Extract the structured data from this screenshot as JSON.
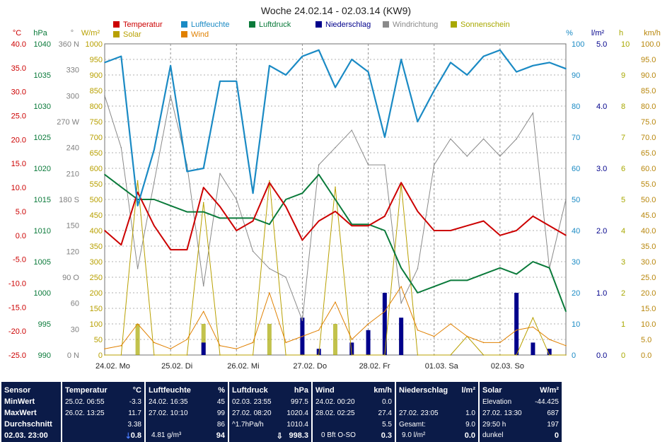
{
  "title": "Woche 24.02.14 - 02.03.14 (KW9)",
  "legend": [
    {
      "label": "Temperatur",
      "color": "#cc0000"
    },
    {
      "label": "Luftfeuchte",
      "color": "#1a8ac4"
    },
    {
      "label": "Luftdruck",
      "color": "#0a7a3a"
    },
    {
      "label": "Niederschlag",
      "color": "#00008b"
    },
    {
      "label": "Windrichtung",
      "color": "#8a8a8a"
    },
    {
      "label": "Sonnenschein",
      "color": "#a8a800"
    },
    {
      "label": "Solar",
      "color": "#b8a000"
    },
    {
      "label": "Wind",
      "color": "#e08000"
    }
  ],
  "axes": {
    "temp": {
      "unit": "°C",
      "color": "#cc0000",
      "ticks": [
        "40.0",
        "35.0",
        "30.0",
        "25.0",
        "20.0",
        "15.0",
        "10.0",
        "5.0",
        "0.0",
        "-5.0",
        "-10.0",
        "-15.0",
        "-20.0",
        "-25.0"
      ]
    },
    "hpa": {
      "unit": "hPa",
      "color": "#0a7a3a",
      "ticks": [
        "1040",
        "1035",
        "1030",
        "1025",
        "1020",
        "1015",
        "1010",
        "1005",
        "1000",
        "995",
        "990"
      ]
    },
    "dir": {
      "unit": "°",
      "color": "#808080",
      "ticks": [
        "360 N",
        "330",
        "300",
        "270 W",
        "240",
        "210",
        "180 S",
        "150",
        "120",
        "90 O",
        "60",
        "30",
        "0 N"
      ]
    },
    "solar": {
      "unit": "W/m²",
      "color": "#b8a000",
      "ticks": [
        "1000",
        "950",
        "900",
        "850",
        "800",
        "750",
        "700",
        "650",
        "600",
        "550",
        "500",
        "450",
        "400",
        "350",
        "300",
        "250",
        "200",
        "150",
        "100",
        "50",
        "0"
      ]
    },
    "hum": {
      "unit": "%",
      "color": "#1a8ac4",
      "ticks": [
        "100",
        "90",
        "80",
        "70",
        "60",
        "50",
        "40",
        "30",
        "20",
        "10",
        "0"
      ]
    },
    "rain": {
      "unit": "l/m²",
      "color": "#00008b",
      "ticks": [
        "5.0",
        "4.0",
        "3.0",
        "2.0",
        "1.0",
        "0.0"
      ]
    },
    "sun": {
      "unit": "h",
      "color": "#a8a800",
      "ticks": [
        "10",
        "9",
        "8",
        "7",
        "6",
        "5",
        "4",
        "3",
        "2",
        "1",
        "0"
      ]
    },
    "wind": {
      "unit": "km/h",
      "color": "#b8860b",
      "ticks": [
        "100.0",
        "95.0",
        "90.0",
        "85.0",
        "80.0",
        "75.0",
        "70.0",
        "65.0",
        "60.0",
        "55.0",
        "50.0",
        "45.0",
        "40.0",
        "35.0",
        "30.0",
        "25.0",
        "20.0",
        "15.0",
        "10.0",
        "5.0",
        "0.0"
      ]
    }
  },
  "days": [
    "24.02. Mo",
    "25.02. Di",
    "26.02. Mi",
    "27.02. Do",
    "28.02. Fr",
    "01.03. Sa",
    "02.03. So"
  ],
  "chart_data": {
    "type": "line",
    "title": "Woche 24.02.14 - 02.03.14 (KW9)",
    "x_hours_from_start": [
      0,
      6,
      12,
      18,
      24,
      30,
      36,
      42,
      48,
      54,
      60,
      66,
      72,
      78,
      84,
      90,
      96,
      102,
      108,
      114,
      120,
      126,
      132,
      138,
      144,
      150,
      156,
      162,
      168
    ],
    "series": [
      {
        "name": "Temperatur",
        "unit": "°C",
        "values": [
          1,
          -2,
          9,
          2,
          -3,
          -3,
          10,
          6,
          1,
          3,
          11,
          6,
          -1,
          3,
          5,
          2,
          2,
          4,
          11,
          5,
          1,
          1,
          2,
          3,
          0,
          1,
          4,
          2,
          0
        ]
      },
      {
        "name": "Luftfeuchte",
        "unit": "%",
        "values": [
          94,
          96,
          48,
          66,
          93,
          59,
          60,
          88,
          88,
          52,
          93,
          90,
          96,
          98,
          86,
          95,
          91,
          70,
          95,
          75,
          85,
          94,
          90,
          96,
          98,
          91,
          93,
          94,
          92
        ]
      },
      {
        "name": "Luftdruck",
        "unit": "hPa",
        "values": [
          1019,
          1017,
          1015,
          1015,
          1014,
          1013,
          1013,
          1012,
          1012,
          1012,
          1011,
          1015,
          1016,
          1019,
          1015,
          1011,
          1011,
          1010,
          1004,
          1000,
          1001,
          1002,
          1002,
          1003,
          1004,
          1003,
          1005,
          1004,
          997
        ]
      },
      {
        "name": "Windrichtung",
        "unit": "°",
        "values": [
          300,
          240,
          100,
          200,
          300,
          220,
          80,
          210,
          180,
          120,
          100,
          90,
          40,
          220,
          240,
          260,
          220,
          220,
          60,
          100,
          220,
          250,
          230,
          250,
          230,
          250,
          280,
          100,
          180
        ]
      },
      {
        "name": "Solar",
        "unit": "W/m²",
        "values": [
          0,
          0,
          560,
          0,
          0,
          0,
          490,
          0,
          0,
          0,
          560,
          0,
          0,
          0,
          540,
          0,
          0,
          0,
          550,
          0,
          0,
          0,
          60,
          0,
          0,
          0,
          120,
          0,
          0
        ]
      },
      {
        "name": "Wind",
        "unit": "km/h",
        "values": [
          2,
          3,
          10,
          4,
          2,
          5,
          14,
          3,
          2,
          4,
          20,
          4,
          6,
          8,
          17,
          5,
          10,
          14,
          22,
          8,
          6,
          10,
          6,
          4,
          4,
          8,
          9,
          5,
          3
        ]
      },
      {
        "name": "Niederschlag",
        "unit": "l/m²",
        "values": [
          0,
          0,
          0,
          0,
          0,
          0,
          0.2,
          0,
          0,
          0,
          0,
          0,
          0.6,
          0.1,
          0,
          0.2,
          0.4,
          1.0,
          0.6,
          0,
          0,
          0,
          0,
          0,
          0,
          1.0,
          0.2,
          0.1,
          0
        ]
      },
      {
        "name": "Sonnenschein",
        "unit": "h",
        "values": [
          0,
          0,
          1,
          0,
          0,
          0,
          1,
          0,
          0,
          0,
          1,
          0,
          0,
          0,
          1,
          0,
          0,
          0,
          1,
          0,
          0,
          0,
          0,
          0,
          0,
          0,
          0,
          0,
          0
        ]
      }
    ]
  },
  "stats": {
    "sensor": {
      "header": "Sensor",
      "rows": [
        "MinWert",
        "MaxWert",
        "Durchschnitt"
      ],
      "footer": "02.03. 23:00"
    },
    "temperatur": {
      "header": "Temperatur",
      "unit": "°C",
      "min_time": "25.02.  06:55",
      "min_val": "-3.3",
      "max_time": "26.02.  13:25",
      "max_val": "11.7",
      "avg_val": "3.38",
      "footer_val": "0.8"
    },
    "luftfeuchte": {
      "header": "Luftfeuchte",
      "unit": "%",
      "min_time": "24.02.  16:35",
      "min_val": "45",
      "max_time": "27.02.  10:10",
      "max_val": "99",
      "avg_val": "86",
      "footer_text": "4.81 g/m³",
      "footer_val": "94"
    },
    "luftdruck": {
      "header": "Luftdruck",
      "unit": "hPa",
      "min_time": "02.03.  23:55",
      "min_val": "997.5",
      "max_time": "27.02.  08:20",
      "max_val": "1020.4",
      "avg_text": "^1.7hPa/h",
      "avg_val": "1010.4",
      "footer_val": "998.3"
    },
    "wind": {
      "header": "Wind",
      "unit": "km/h",
      "min_time": "24.02.  00:20",
      "min_val": "0.0",
      "max_time": "28.02.  02:25",
      "max_val": "27.4",
      "avg_val": "5.5",
      "footer_text": "0 Bft O-SO",
      "footer_val": "0.3"
    },
    "niederschlag": {
      "header": "Niederschlag",
      "unit": "l/m²",
      "max_time": "27.02.  23:05",
      "max_val": "1.0",
      "total_label": "Gesamt:",
      "total_val": "9.0",
      "footer_text": "9.0 l/m²",
      "footer_val": "0.0"
    },
    "solar": {
      "header": "Solar",
      "unit": "W/m²",
      "min_label": "Elevation",
      "min_val": "-44.425",
      "max_time": "27.02.  13:30",
      "max_val": "687",
      "avg_text": "29:50 h",
      "avg_val": "197",
      "footer_text": "dunkel",
      "footer_val": "0"
    }
  }
}
